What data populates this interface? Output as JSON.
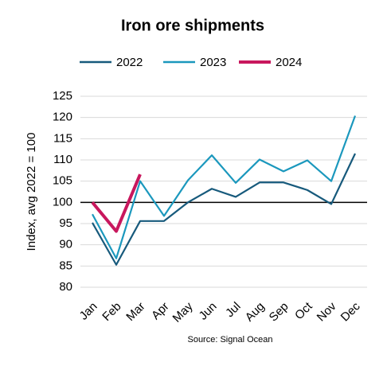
{
  "chart_data": {
    "type": "line",
    "title": "Iron ore shipments",
    "y_label": "Index, avg 2022 = 100",
    "source": "Source: Signal Ocean",
    "categories": [
      "Jan",
      "Feb",
      "Mar",
      "Apr",
      "May",
      "Jun",
      "Jul",
      "Aug",
      "Sep",
      "Oct",
      "Nov",
      "Dec"
    ],
    "series": [
      {
        "name": "2022",
        "color": "#175a7c",
        "values": [
          95.2,
          85.3,
          95.6,
          95.6,
          100,
          103.2,
          101.3,
          104.7,
          104.7,
          102.9,
          99.6,
          111.5
        ]
      },
      {
        "name": "2023",
        "color": "#1b98bd",
        "values": [
          97.2,
          86.8,
          105,
          96.8,
          105.2,
          111.1,
          104.6,
          110.1,
          107.3,
          109.9,
          105,
          120.4
        ]
      },
      {
        "name": "2024",
        "color": "#c8175d",
        "values": [
          100,
          93.2,
          106.6,
          null,
          null,
          null,
          null,
          null,
          null,
          null,
          null,
          null
        ]
      }
    ],
    "reference_line": 100,
    "ylim": [
      80,
      125
    ],
    "yticks": [
      80,
      85,
      90,
      95,
      100,
      105,
      110,
      115,
      120,
      125
    ],
    "grid": true,
    "legend": "top"
  }
}
